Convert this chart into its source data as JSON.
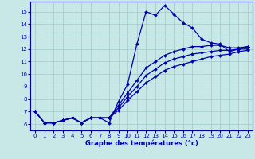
{
  "title": "Graphe des températures (°c)",
  "bg_color": "#c8e8e8",
  "line_color": "#0000aa",
  "marker": "D",
  "markersize": 2.0,
  "linewidth": 0.9,
  "xlim": [
    -0.5,
    23.5
  ],
  "ylim": [
    5.5,
    15.8
  ],
  "yticks": [
    6,
    7,
    8,
    9,
    10,
    11,
    12,
    13,
    14,
    15
  ],
  "xticks": [
    0,
    1,
    2,
    3,
    4,
    5,
    6,
    7,
    8,
    9,
    10,
    11,
    12,
    13,
    14,
    15,
    16,
    17,
    18,
    19,
    20,
    21,
    22,
    23
  ],
  "series": [
    [
      7.0,
      6.1,
      6.1,
      6.3,
      6.5,
      6.1,
      6.5,
      6.5,
      6.1,
      7.8,
      9.2,
      12.4,
      15.0,
      14.7,
      15.5,
      14.8,
      14.1,
      13.7,
      12.8,
      12.5,
      12.4,
      11.8,
      12.0,
      12.2
    ],
    [
      7.0,
      6.1,
      6.1,
      6.3,
      6.5,
      6.1,
      6.5,
      6.5,
      6.5,
      7.5,
      8.5,
      9.5,
      10.5,
      11.0,
      11.5,
      11.8,
      12.0,
      12.2,
      12.2,
      12.3,
      12.3,
      12.1,
      12.1,
      12.2
    ],
    [
      7.0,
      6.1,
      6.1,
      6.3,
      6.5,
      6.1,
      6.5,
      6.5,
      6.5,
      7.3,
      8.2,
      9.0,
      9.9,
      10.4,
      10.9,
      11.2,
      11.4,
      11.6,
      11.7,
      11.8,
      11.9,
      11.9,
      12.0,
      12.0
    ],
    [
      7.0,
      6.1,
      6.1,
      6.3,
      6.5,
      6.1,
      6.5,
      6.5,
      6.5,
      7.1,
      7.9,
      8.6,
      9.3,
      9.8,
      10.3,
      10.6,
      10.8,
      11.0,
      11.2,
      11.4,
      11.5,
      11.6,
      11.8,
      11.9
    ]
  ],
  "xlabel_fontsize": 6.0,
  "tick_fontsize": 5.0
}
